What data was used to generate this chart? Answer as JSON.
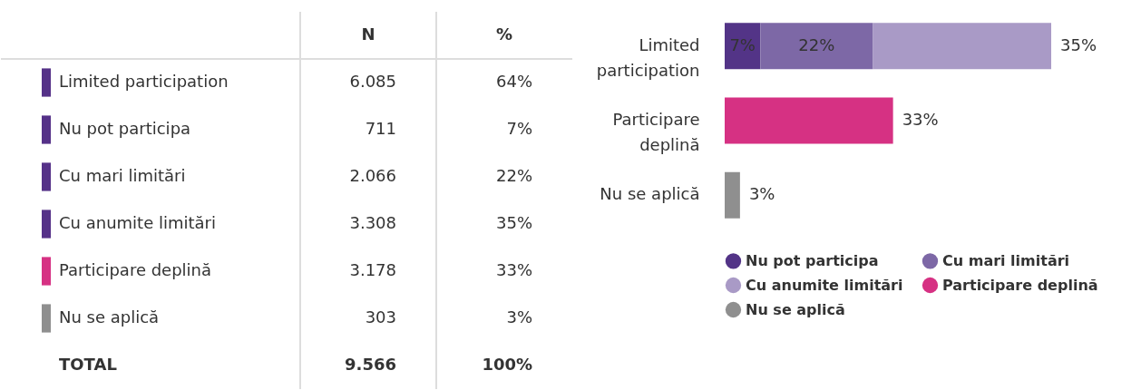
{
  "chart_data": [
    {
      "type": "other",
      "categories": [
        "Limited participation",
        "Nu pot participa",
        "Cu mari limitări",
        "Cu anumite limitări",
        "Participare deplină",
        "Nu se aplică",
        "TOTAL"
      ],
      "colors": [
        "#553188",
        "#553188",
        "#553188",
        "#553188",
        "#d63183",
        "#8f8f8f",
        null
      ],
      "series": [
        {
          "name": "N",
          "color": "#333333",
          "values": [
            6085,
            711,
            2066,
            3308,
            3178,
            303,
            9566
          ],
          "value_labels": [
            "6.085",
            "711",
            "2.066",
            "3.308",
            "3.178",
            "303",
            "9.566"
          ]
        },
        {
          "name": "%",
          "color": "#333333",
          "values": [
            64,
            7,
            22,
            35,
            33,
            3,
            100
          ],
          "value_labels": [
            "64%",
            "7%",
            "22%",
            "35%",
            "33%",
            "3%",
            "100%"
          ]
        }
      ]
    },
    {
      "type": "bar",
      "orientation": "horizontal",
      "stacked": true,
      "legend": "bottom",
      "categories": [
        "Limited participation",
        "Participare deplină",
        "Nu se aplică"
      ],
      "series": [
        {
          "name": "Nu pot participa",
          "color": "#533487",
          "values": [
            7,
            null,
            null
          ],
          "value_labels": [
            "7%",
            null,
            null
          ]
        },
        {
          "name": "Cu mari limitări",
          "color": "#7d68a6",
          "values": [
            22,
            null,
            null
          ],
          "value_labels": [
            "22%",
            null,
            null
          ]
        },
        {
          "name": "Cu anumite limitări",
          "color": "#a99ac6",
          "values": [
            35,
            null,
            null
          ],
          "value_labels": [
            "35%",
            null,
            null
          ]
        },
        {
          "name": "Participare deplină",
          "color": "#d63183",
          "values": [
            null,
            33,
            null
          ],
          "value_labels": [
            null,
            "33%",
            null
          ]
        },
        {
          "name": "Nu se aplică",
          "color": "#8f8f8f",
          "values": [
            null,
            null,
            3
          ],
          "value_labels": [
            null,
            null,
            "3%"
          ]
        }
      ]
    }
  ]
}
